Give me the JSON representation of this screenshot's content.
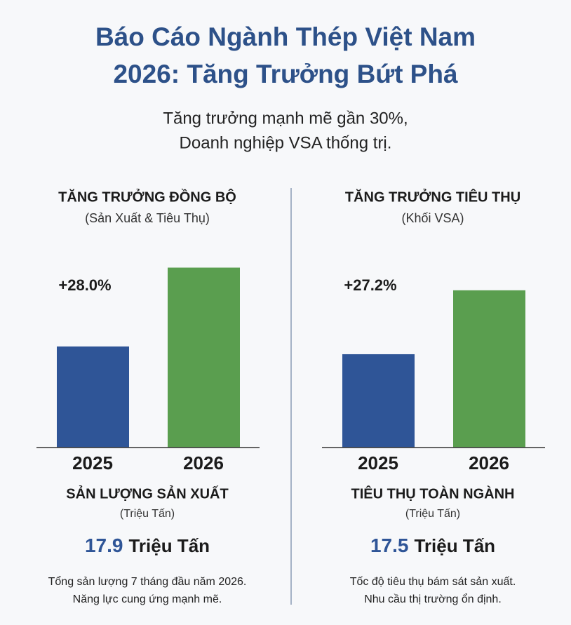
{
  "title": [
    "Báo Cáo Ngành Thép Việt Nam",
    "2026: Tăng Trưởng Bứt Phá"
  ],
  "subtitle": [
    "Tăng trưởng mạnh mẽ gần 30%,",
    "Doanh nghiệp VSA thống trị."
  ],
  "chart_data": [
    {
      "type": "bar",
      "title": "TĂNG TRƯỞNG ĐỒNG BỘ",
      "subtitle": "(Sản Xuất & Tiêu Thụ)",
      "annotation": "+28.0%",
      "categories": [
        "2025",
        "2026"
      ],
      "values": [
        14.0,
        17.9
      ],
      "colors": [
        "#2f5597",
        "#5a9e4f"
      ],
      "ylim": [
        9,
        18.3
      ],
      "x_label": "SẢN LƯỢNG SẢN XUẤT",
      "unit": "(Triệu Tấn)",
      "headline_unit": "Triệu Tấn",
      "notes": [
        "Tổng sản lượng 7 tháng đầu năm 2026.",
        "Năng lực cung ứng mạnh mẽ."
      ]
    },
    {
      "type": "bar",
      "title": "TĂNG TRƯỞNG TIÊU THỤ",
      "subtitle": "(Khối VSA)",
      "annotation": "+27.2%",
      "categories": [
        "2025",
        "2026"
      ],
      "values": [
        13.76,
        17.5
      ],
      "colors": [
        "#2f5597",
        "#5a9e4f"
      ],
      "ylim": [
        8.3,
        19.3
      ],
      "x_label": "TIÊU THỤ TOÀN NGÀNH",
      "unit": "(Triệu Tấn)",
      "headline_unit": "Triệu Tấn",
      "notes": [
        "Tốc độ tiêu thụ bám sát sản xuất.",
        "Nhu cầu thị trường ổn định."
      ]
    }
  ]
}
